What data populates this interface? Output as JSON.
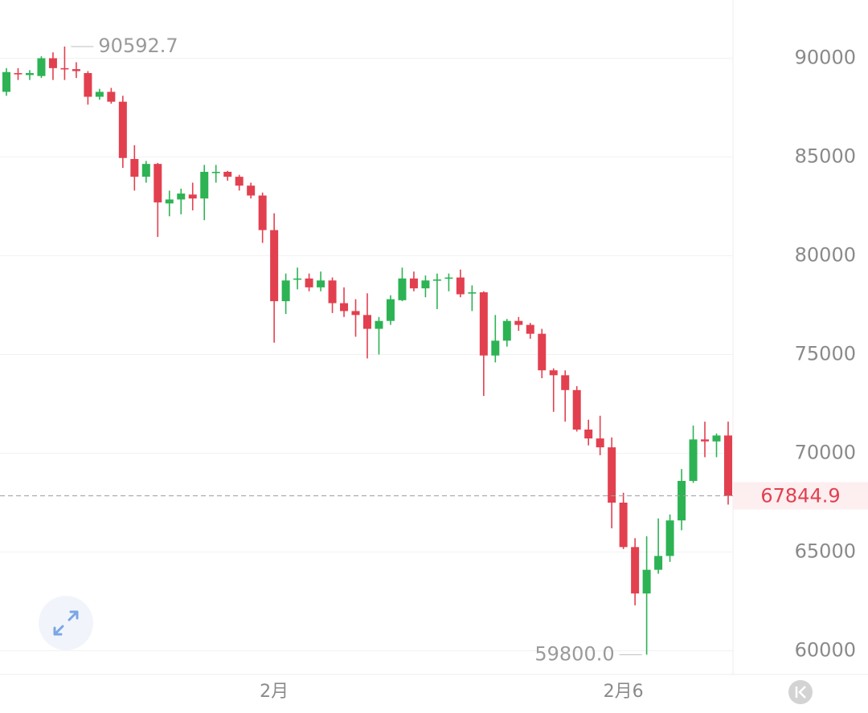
{
  "chart_data": {
    "type": "candlestick",
    "categories": [
      null,
      null,
      null,
      null,
      null,
      null,
      null,
      null,
      null,
      null,
      null,
      null,
      null,
      null,
      null,
      null,
      null,
      null,
      null,
      null,
      null,
      null,
      null,
      "2月",
      null,
      null,
      null,
      null,
      null,
      null,
      null,
      null,
      null,
      null,
      null,
      null,
      null,
      null,
      null,
      null,
      null,
      null,
      null,
      null,
      null,
      null,
      null,
      null,
      null,
      null,
      null,
      null,
      null,
      "2月6",
      null,
      null,
      null,
      null,
      null,
      null,
      null,
      null,
      null
    ],
    "open": [
      88300,
      89250,
      89150,
      89100,
      90000,
      89500,
      89450,
      89250,
      88050,
      88300,
      87800,
      84900,
      84000,
      84650,
      82650,
      82850,
      83100,
      82900,
      84200,
      84250,
      84000,
      83550,
      83050,
      81300,
      77700,
      78800,
      78850,
      78400,
      78750,
      77600,
      77200,
      77000,
      76300,
      76700,
      77750,
      78850,
      78350,
      78750,
      78850,
      78900,
      78100,
      78150,
      74950,
      75700,
      76700,
      76500,
      76050,
      74200,
      73950,
      73200,
      71200,
      70750,
      70300,
      67500,
      65250,
      62900,
      64100,
      64800,
      66600,
      68600,
      70700,
      70600,
      70900
    ],
    "high": [
      89500,
      89500,
      89400,
      90100,
      90300,
      90592.7,
      89800,
      89350,
      88450,
      88500,
      88100,
      85600,
      84800,
      84700,
      83300,
      83400,
      83700,
      84600,
      84600,
      84300,
      84100,
      83700,
      83200,
      82150,
      79100,
      79400,
      79100,
      79200,
      78900,
      78400,
      77800,
      78100,
      76900,
      78000,
      79400,
      79200,
      79000,
      79100,
      79100,
      79300,
      78500,
      78200,
      77000,
      76800,
      76900,
      76600,
      76300,
      74300,
      74200,
      73400,
      71700,
      71900,
      70800,
      68000,
      65700,
      65800,
      66700,
      66900,
      69200,
      71400,
      71600,
      71000,
      71600
    ],
    "low": [
      88100,
      88900,
      88900,
      89000,
      88900,
      88900,
      89000,
      87650,
      87900,
      87700,
      84450,
      83300,
      83700,
      80950,
      82000,
      82100,
      82300,
      81800,
      83700,
      83800,
      83300,
      82900,
      80650,
      75600,
      77050,
      78300,
      78200,
      78200,
      77100,
      76900,
      75900,
      74800,
      75000,
      76500,
      77700,
      78200,
      77900,
      77300,
      78200,
      77900,
      77200,
      72900,
      74600,
      75400,
      76200,
      75800,
      73800,
      72100,
      71600,
      71100,
      70400,
      69900,
      66200,
      65150,
      62300,
      59800,
      63900,
      64500,
      66100,
      68500,
      69800,
      69800,
      67400
    ],
    "close": [
      89300,
      89200,
      89250,
      90000,
      89500,
      89450,
      89350,
      88050,
      88300,
      87800,
      84950,
      84000,
      84650,
      82700,
      82850,
      83150,
      82900,
      84250,
      84250,
      84000,
      83550,
      83050,
      81300,
      77700,
      78750,
      78850,
      78400,
      78750,
      77600,
      77200,
      77000,
      76300,
      76700,
      77800,
      78850,
      78350,
      78750,
      78800,
      78900,
      78050,
      78150,
      74950,
      75700,
      76700,
      76500,
      76050,
      74200,
      73950,
      73200,
      71200,
      70750,
      70300,
      67500,
      65250,
      62900,
      64100,
      64800,
      66600,
      68600,
      70700,
      70600,
      70900,
      67844.9
    ],
    "up_color": "#2db354",
    "down_color": "#e2404f",
    "ylim": [
      58800,
      92950
    ],
    "yticks": [
      60000,
      65000,
      70000,
      75000,
      80000,
      85000,
      90000
    ],
    "grid": true,
    "annotations": [
      {
        "value": 90592.7,
        "label": "90592.7"
      },
      {
        "value": 59800,
        "label": "59800.0"
      }
    ],
    "last_price": 67844.9
  }
}
